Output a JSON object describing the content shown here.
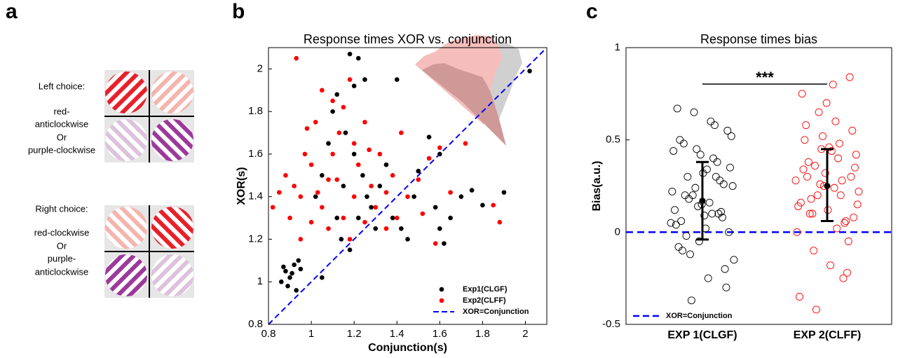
{
  "panel_labels": [
    "a",
    "b",
    "c"
  ],
  "stimuli": {
    "left": {
      "heading": "Left choice:",
      "lines": [
        "red-",
        "anticlockwise",
        "Or",
        "purple-clockwise"
      ]
    },
    "right": {
      "heading": "Right choice:",
      "lines": [
        "red-clockwise",
        "Or",
        "purple-",
        "anticlockwise"
      ]
    }
  },
  "chart_data": [
    {
      "type": "scatter",
      "title": "Response times XOR vs. conjunction",
      "x_label": "Conjunction(s)",
      "y_label": "XOR(s)",
      "xlim": [
        0.8,
        2.1
      ],
      "ylim": [
        0.8,
        2.1
      ],
      "xticks": [
        0.8,
        1,
        1.2,
        1.4,
        1.6,
        1.8,
        2
      ],
      "yticks": [
        0.8,
        1,
        1.2,
        1.4,
        1.6,
        1.8,
        2
      ],
      "legend": "lower right",
      "reference_line": {
        "label": "XOR=Conjunction",
        "color": "#0000ff"
      },
      "series": [
        {
          "name": "Exp1(CLGF)",
          "color": "#000000",
          "x": [
            0.88,
            0.9,
            0.92,
            0.86,
            0.94,
            0.89,
            0.91,
            0.95,
            0.87,
            0.93,
            1.05,
            1.02,
            1.05,
            1.08,
            1.1,
            1.12,
            1.15,
            1.18,
            1.2,
            1.22,
            1.25,
            1.16,
            1.2,
            1.24,
            1.28,
            1.3,
            1.14,
            1.18,
            1.26,
            1.32,
            1.35,
            1.38,
            1.42,
            1.45,
            1.4,
            1.48,
            1.5,
            1.55,
            1.58,
            1.6,
            1.62,
            1.65,
            1.7,
            1.75,
            1.8,
            1.9,
            2.02,
            1.6,
            1.12,
            1.22
          ],
          "values": [
            1.05,
            1.02,
            1.08,
            1.0,
            1.1,
            0.98,
            1.04,
            1.06,
            1.07,
            0.96,
            1.02,
            1.4,
            1.5,
            1.65,
            1.8,
            1.3,
            1.45,
            2.07,
            1.92,
            2.05,
            1.95,
            1.7,
            1.6,
            1.5,
            1.35,
            1.25,
            1.2,
            1.15,
            1.4,
            1.45,
            1.55,
            1.3,
            1.25,
            1.2,
            1.95,
            1.4,
            1.52,
            1.68,
            1.35,
            1.6,
            1.18,
            1.3,
            1.4,
            1.43,
            1.36,
            1.42,
            1.99,
            1.25,
            1.88,
            1.3
          ]
        },
        {
          "name": "Exp2(CLFF)",
          "color": "#ff0000",
          "x": [
            0.82,
            0.85,
            0.88,
            0.9,
            0.92,
            0.95,
            0.97,
            1.0,
            1.02,
            1.05,
            1.05,
            1.08,
            1.1,
            1.12,
            1.13,
            1.15,
            1.15,
            1.18,
            1.2,
            1.2,
            1.22,
            1.25,
            1.25,
            1.28,
            1.3,
            1.32,
            1.35,
            1.38,
            1.4,
            1.42,
            1.45,
            1.5,
            1.52,
            1.55,
            1.58,
            1.6,
            1.65,
            1.72,
            1.85,
            1.88,
            0.93,
            1.1,
            0.95,
            1.0,
            1.08,
            1.18,
            1.27,
            1.03,
            0.98,
            1.35
          ],
          "values": [
            1.35,
            1.42,
            1.5,
            1.3,
            1.45,
            1.4,
            1.6,
            1.55,
            1.75,
            1.35,
            1.9,
            1.25,
            1.6,
            1.48,
            1.7,
            1.82,
            1.3,
            1.95,
            1.65,
            1.4,
            1.55,
            1.28,
            1.75,
            1.45,
            1.35,
            1.6,
            1.42,
            1.5,
            1.3,
            1.7,
            1.4,
            1.48,
            1.32,
            1.58,
            1.18,
            1.63,
            1.42,
            1.65,
            1.36,
            1.28,
            2.05,
            1.85,
            1.2,
            1.28,
            1.48,
            1.2,
            1.62,
            1.42,
            1.72,
            1.25
          ]
        }
      ]
    },
    {
      "type": "strip",
      "title": "Response times bias",
      "y_label": "Bias(a.u.)",
      "ylim": [
        -0.5,
        1
      ],
      "yticks": [
        -0.5,
        0,
        0.5,
        1
      ],
      "categories": [
        "EXP 1(CLGF)",
        "EXP 2(CLFF)"
      ],
      "annotation": "***",
      "reference_line": {
        "label": "XOR=Conjunction",
        "color": "#0000ff"
      },
      "series": [
        {
          "color": "#000000",
          "values": [
            0.05,
            0.1,
            0.15,
            0.2,
            0.25,
            0.3,
            -0.05,
            -0.1,
            0.35,
            0.4,
            0.45,
            0.5,
            0.55,
            0.6,
            0.65,
            0.67,
            -0.2,
            -0.25,
            -0.37,
            0.12,
            0.08,
            0.02,
            0.18,
            0.22,
            0.28,
            0.32,
            -0.02,
            -0.15,
            0.38,
            0.42,
            0.48,
            0.52,
            0.58,
            0.14,
            0.06,
            0.0,
            0.1,
            0.24,
            -0.08,
            -0.3,
            0.16,
            0.2,
            0.04,
            0.26,
            0.34,
            -0.12,
            0.44,
            0.11,
            0.09,
            0.3
          ],
          "error_bar": {
            "mean": 0.17,
            "lower": -0.04,
            "upper": 0.38
          }
        },
        {
          "color": "#ff0000",
          "values": [
            0.1,
            0.15,
            0.2,
            0.25,
            0.3,
            0.35,
            0.4,
            0.45,
            0.5,
            0.55,
            0.6,
            0.65,
            0.75,
            0.84,
            0.8,
            -0.42,
            -0.35,
            -0.22,
            -0.18,
            -0.1,
            0.0,
            0.05,
            0.12,
            0.18,
            0.22,
            0.28,
            0.32,
            0.38,
            0.42,
            0.48,
            0.52,
            0.58,
            0.08,
            0.02,
            0.26,
            0.34,
            0.3,
            0.24,
            0.2,
            0.16,
            -0.05,
            0.44,
            0.36,
            0.14,
            0.06,
            0.46,
            0.1,
            0.28,
            -0.25,
            0.7
          ],
          "error_bar": {
            "mean": 0.25,
            "lower": 0.06,
            "upper": 0.45
          }
        }
      ]
    }
  ]
}
